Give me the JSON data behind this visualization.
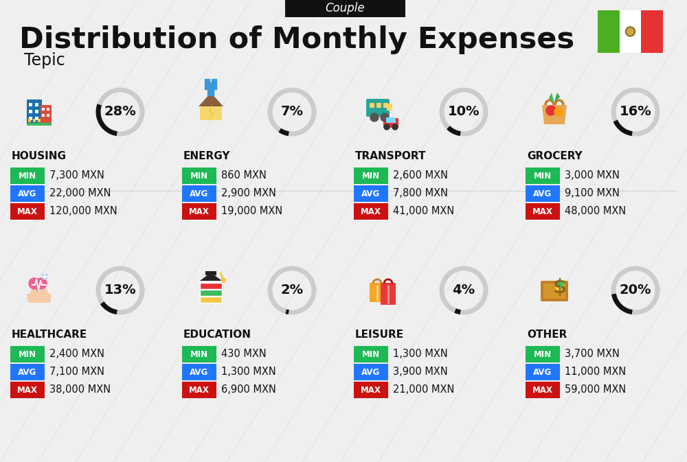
{
  "title": "Distribution of Monthly Expenses",
  "subtitle": "Tepic",
  "header_label": "Couple",
  "bg_color": "#efefef",
  "categories": [
    {
      "name": "HOUSING",
      "percent": 28,
      "min": "7,300 MXN",
      "avg": "22,000 MXN",
      "max": "120,000 MXN",
      "col": 0,
      "row": 0
    },
    {
      "name": "ENERGY",
      "percent": 7,
      "min": "860 MXN",
      "avg": "2,900 MXN",
      "max": "19,000 MXN",
      "col": 1,
      "row": 0
    },
    {
      "name": "TRANSPORT",
      "percent": 10,
      "min": "2,600 MXN",
      "avg": "7,800 MXN",
      "max": "41,000 MXN",
      "col": 2,
      "row": 0
    },
    {
      "name": "GROCERY",
      "percent": 16,
      "min": "3,000 MXN",
      "avg": "9,100 MXN",
      "max": "48,000 MXN",
      "col": 3,
      "row": 0
    },
    {
      "name": "HEALTHCARE",
      "percent": 13,
      "min": "2,400 MXN",
      "avg": "7,100 MXN",
      "max": "38,000 MXN",
      "col": 0,
      "row": 1
    },
    {
      "name": "EDUCATION",
      "percent": 2,
      "min": "430 MXN",
      "avg": "1,300 MXN",
      "max": "6,900 MXN",
      "col": 1,
      "row": 1
    },
    {
      "name": "LEISURE",
      "percent": 4,
      "min": "1,300 MXN",
      "avg": "3,900 MXN",
      "max": "21,000 MXN",
      "col": 2,
      "row": 1
    },
    {
      "name": "OTHER",
      "percent": 20,
      "min": "3,700 MXN",
      "avg": "11,000 MXN",
      "max": "59,000 MXN",
      "col": 3,
      "row": 1
    }
  ],
  "color_min": "#1db954",
  "color_avg": "#2176ff",
  "color_max": "#cc1111",
  "arc_color_active": "#111111",
  "arc_color_inactive": "#cccccc",
  "text_color": "#111111",
  "flag_green": "#4caf22",
  "flag_white": "#ffffff",
  "flag_red": "#e63232"
}
